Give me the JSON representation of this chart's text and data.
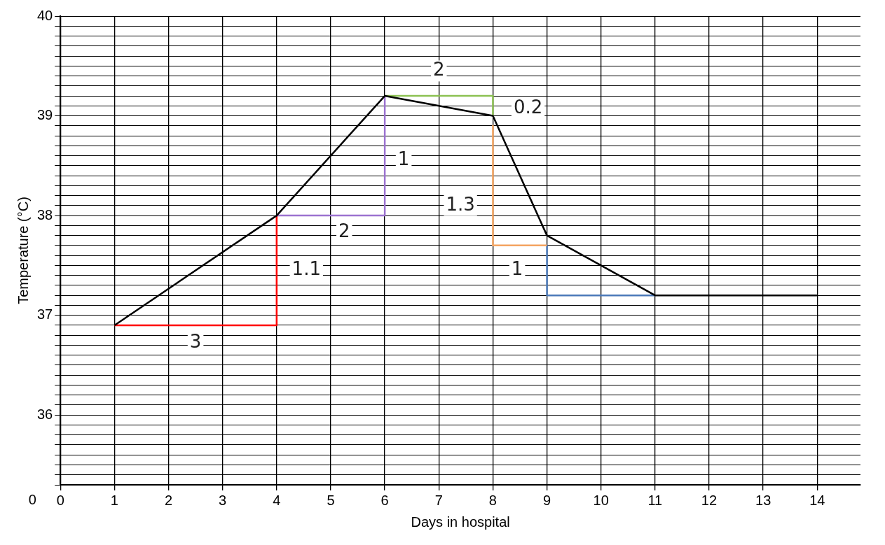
{
  "chart_data": {
    "type": "line",
    "xlabel": "Days in hospital",
    "ylabel": "Temperature (°C)",
    "xlim": [
      0,
      14.8
    ],
    "xticks": [
      0,
      1,
      2,
      3,
      4,
      5,
      6,
      7,
      8,
      9,
      10,
      11,
      12,
      13,
      14
    ],
    "ylim": [
      35.3,
      40
    ],
    "yticks": [
      {
        "value": 35.3,
        "label": null
      },
      {
        "value": 35.4,
        "label": null
      },
      {
        "value": 35.5,
        "label": null
      },
      {
        "value": 35.6,
        "label": null
      },
      {
        "value": 35.7,
        "label": null
      },
      {
        "value": 35.8,
        "label": null
      },
      {
        "value": 35.9,
        "label": null
      },
      36,
      {
        "value": 36.1,
        "label": null
      },
      {
        "value": 36.2,
        "label": null
      },
      {
        "value": 36.3,
        "label": null
      },
      {
        "value": 36.4,
        "label": null
      },
      {
        "value": 36.5,
        "label": null
      },
      {
        "value": 36.6,
        "label": null
      },
      {
        "value": 36.7,
        "label": null
      },
      {
        "value": 36.8,
        "label": null
      },
      {
        "value": 36.9,
        "label": null
      },
      37,
      {
        "value": 37.1,
        "label": null
      },
      {
        "value": 37.2,
        "label": null
      },
      {
        "value": 37.3,
        "label": null
      },
      {
        "value": 37.4,
        "label": null
      },
      {
        "value": 37.5,
        "label": null
      },
      {
        "value": 37.6,
        "label": null
      },
      {
        "value": 37.7,
        "label": null
      },
      {
        "value": 37.8,
        "label": null
      },
      {
        "value": 37.9,
        "label": null
      },
      38,
      {
        "value": 38.1,
        "label": null
      },
      {
        "value": 38.2,
        "label": null
      },
      {
        "value": 38.3,
        "label": null
      },
      {
        "value": 38.4,
        "label": null
      },
      {
        "value": 38.5,
        "label": null
      },
      {
        "value": 38.6,
        "label": null
      },
      {
        "value": 38.7,
        "label": null
      },
      {
        "value": 38.8,
        "label": null
      },
      {
        "value": 38.9,
        "label": null
      },
      39,
      {
        "value": 39.1,
        "label": null
      },
      {
        "value": 39.2,
        "label": null
      },
      {
        "value": 39.3,
        "label": null
      },
      {
        "value": 39.4,
        "label": null
      },
      {
        "value": 39.5,
        "label": null
      },
      {
        "value": 39.6,
        "label": null
      },
      {
        "value": 39.7,
        "label": null
      },
      {
        "value": 39.8,
        "label": null
      },
      {
        "value": 39.9,
        "label": null
      },
      40
    ],
    "grid": true,
    "legend": false,
    "marker": "none",
    "line_style": "solid",
    "series": [
      {
        "color": "#000000",
        "x": [
          1,
          4,
          6,
          8,
          9,
          11,
          14
        ],
        "values": [
          36.9,
          38.0,
          39.2,
          39.0,
          37.8,
          37.2,
          37.2
        ]
      },
      {
        "color": "#ff0000",
        "x": [
          1,
          4,
          4
        ],
        "values": [
          36.9,
          36.9,
          38.0
        ]
      },
      {
        "color": "#9b72cf",
        "x": [
          4,
          6,
          6
        ],
        "values": [
          38.0,
          38.0,
          39.2
        ]
      },
      {
        "color": "#8cc152",
        "x": [
          6,
          8,
          8
        ],
        "values": [
          39.2,
          39.2,
          39.0
        ]
      },
      {
        "color": "#f4a460",
        "x": [
          8,
          8,
          9
        ],
        "values": [
          38.9,
          37.7,
          37.7
        ]
      },
      {
        "color": "#4a78b8",
        "x": [
          9,
          9,
          11
        ],
        "values": [
          37.7,
          37.2,
          37.2
        ]
      }
    ],
    "annotations": [
      "0",
      "3",
      "1.1",
      "2",
      "1",
      "2",
      "0.2",
      "1.3",
      "1"
    ]
  }
}
